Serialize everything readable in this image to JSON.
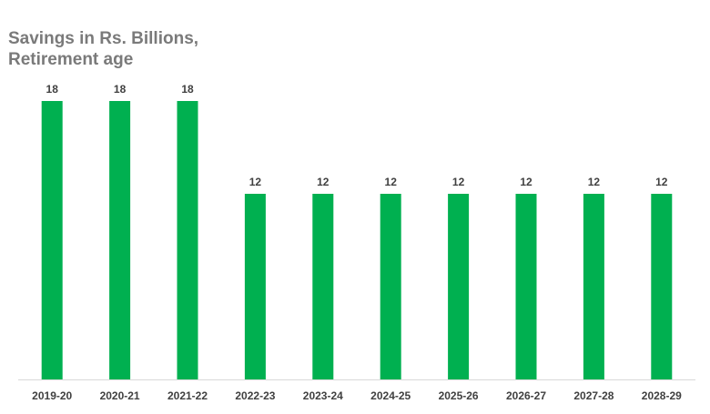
{
  "chart_data": {
    "type": "bar",
    "title_lines": [
      "Savings in Rs. Billions,",
      "Retirement age"
    ],
    "categories": [
      "2019-20",
      "2020-21",
      "2021-22",
      "2022-23",
      "2023-24",
      "2024-25",
      "2025-26",
      "2026-27",
      "2027-28",
      "2028-29"
    ],
    "values": [
      18,
      18,
      18,
      12,
      12,
      12,
      12,
      12,
      12,
      12
    ],
    "data_labels": [
      "18",
      "18",
      "18",
      "12",
      "12",
      "12",
      "12",
      "12",
      "12",
      "12"
    ],
    "xlabel": "",
    "ylabel": "",
    "ylim": [
      0,
      18
    ],
    "grid": false,
    "legend": "none",
    "colors": {
      "bar": "#00b050",
      "axis": "#d9d9d9",
      "title": "#7a7a7a",
      "label": "#404040"
    }
  }
}
